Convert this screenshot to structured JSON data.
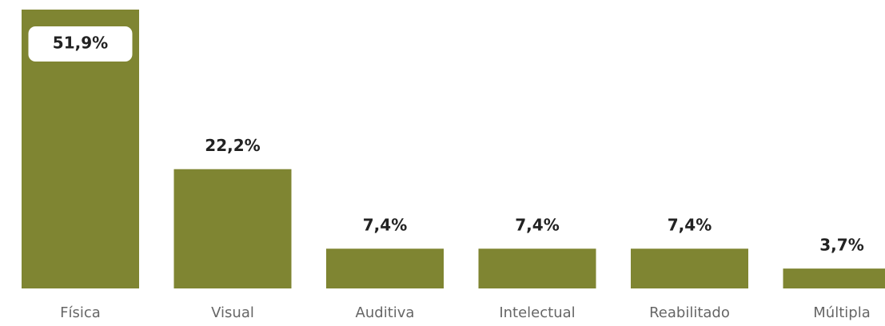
{
  "chart_data": {
    "type": "bar",
    "categories": [
      "Física",
      "Visual",
      "Auditiva",
      "Intelectual",
      "Reabilitado",
      "Múltipla"
    ],
    "values": [
      51.9,
      22.2,
      7.4,
      7.4,
      7.4,
      3.7
    ],
    "value_labels": [
      "51,9%",
      "22,2%",
      "7,4%",
      "7,4%",
      "7,4%",
      "3,7%"
    ],
    "color": "#7f8532"
  }
}
